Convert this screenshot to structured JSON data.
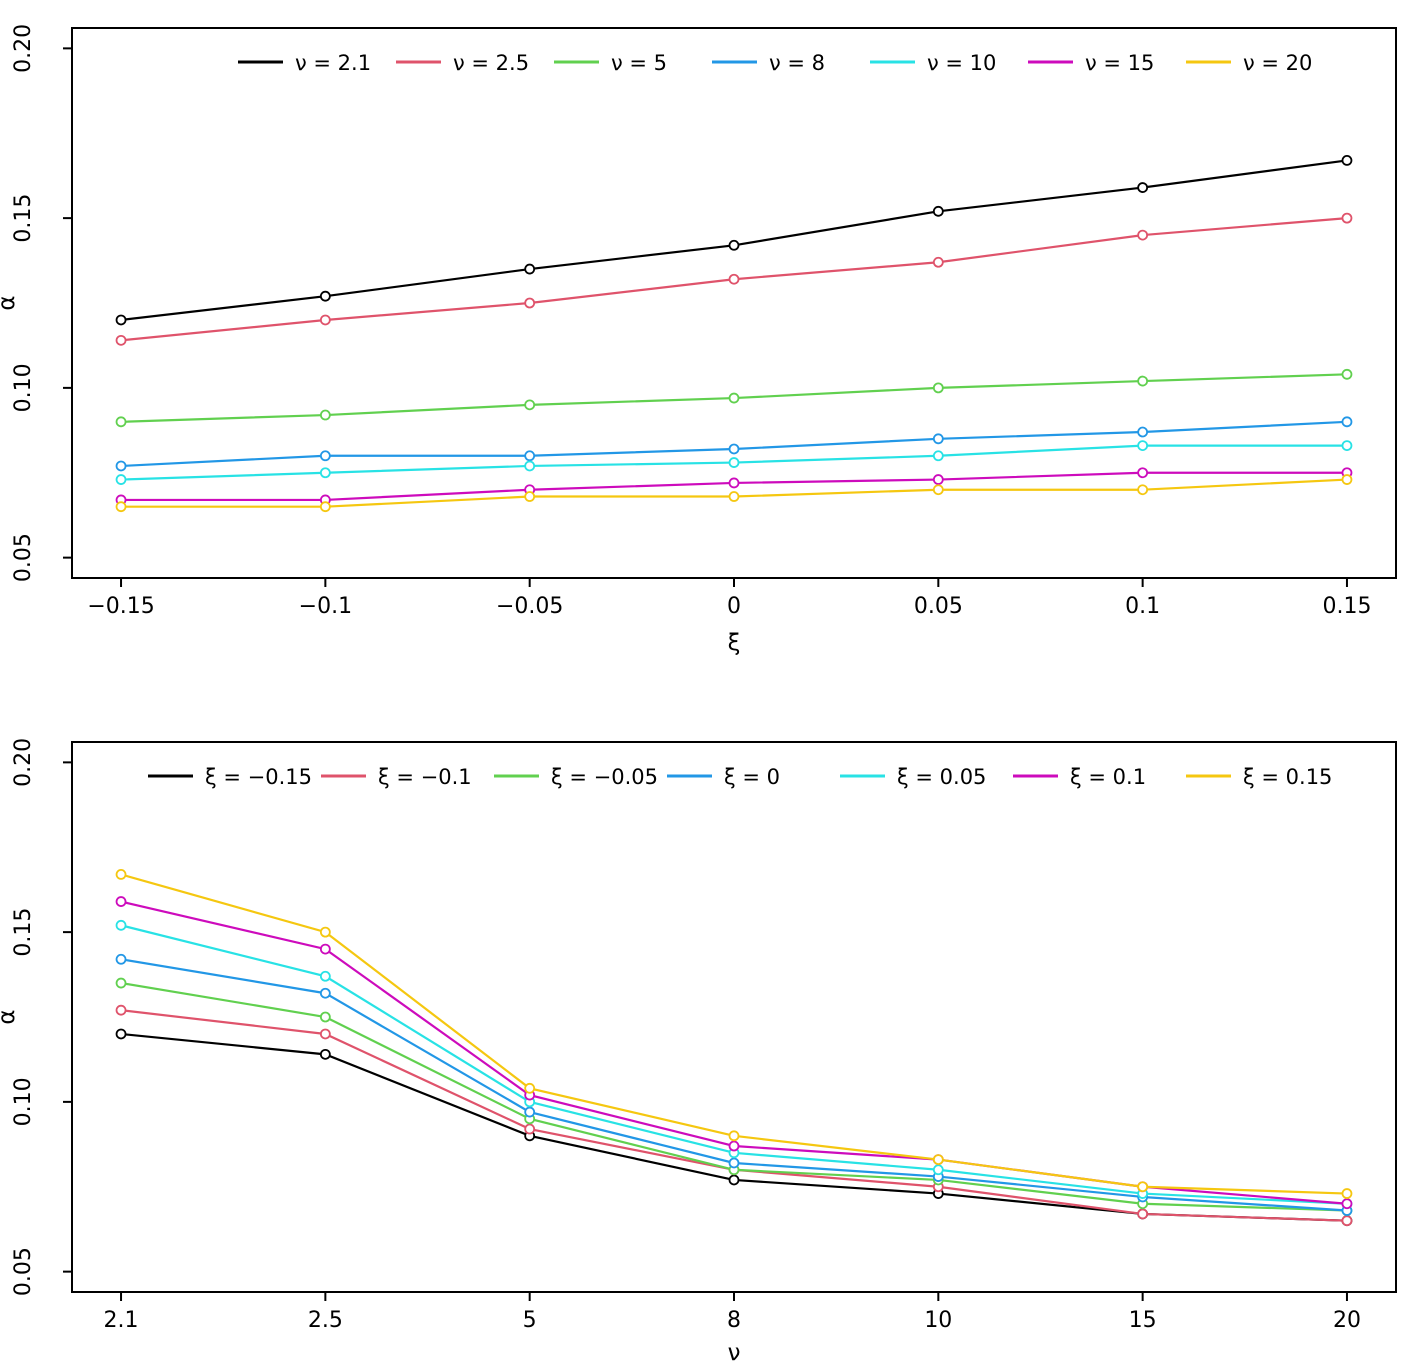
{
  "figure": {
    "background": "#ffffff",
    "palette": [
      "#000000",
      "#DF536B",
      "#61D04F",
      "#2297E6",
      "#28E2E5",
      "#CD0BBC",
      "#F5C710"
    ]
  },
  "chart_data": [
    {
      "type": "line",
      "title": "",
      "xlabel": "ξ",
      "ylabel": "α",
      "x": [
        -0.15,
        -0.1,
        -0.05,
        0,
        0.05,
        0.1,
        0.15
      ],
      "x_tick_labels": [
        "−0.15",
        "−0.1",
        "−0.05",
        "0",
        "0.05",
        "0.1",
        "0.15"
      ],
      "y_ticks": [
        0.05,
        0.1,
        0.15,
        0.2
      ],
      "y_tick_labels": [
        "0.05",
        "0.10",
        "0.15",
        "0.20"
      ],
      "ylim": [
        0.044,
        0.206
      ],
      "grid": false,
      "legend_position": "top-horizontal",
      "marker": "open-circle",
      "series": [
        {
          "name": "ν = 2.1",
          "color": "#000000",
          "values": [
            0.12,
            0.127,
            0.135,
            0.142,
            0.152,
            0.159,
            0.167
          ]
        },
        {
          "name": "ν = 2.5",
          "color": "#DF536B",
          "values": [
            0.114,
            0.12,
            0.125,
            0.132,
            0.137,
            0.145,
            0.15
          ]
        },
        {
          "name": "ν = 5",
          "color": "#61D04F",
          "values": [
            0.09,
            0.092,
            0.095,
            0.097,
            0.1,
            0.102,
            0.104
          ]
        },
        {
          "name": "ν = 8",
          "color": "#2297E6",
          "values": [
            0.077,
            0.08,
            0.08,
            0.082,
            0.085,
            0.087,
            0.09
          ]
        },
        {
          "name": "ν = 10",
          "color": "#28E2E5",
          "values": [
            0.073,
            0.075,
            0.077,
            0.078,
            0.08,
            0.083,
            0.083
          ]
        },
        {
          "name": "ν = 15",
          "color": "#CD0BBC",
          "values": [
            0.067,
            0.067,
            0.07,
            0.072,
            0.073,
            0.075,
            0.075
          ]
        },
        {
          "name": "ν = 20",
          "color": "#F5C710",
          "values": [
            0.065,
            0.065,
            0.068,
            0.068,
            0.07,
            0.07,
            0.073
          ]
        }
      ]
    },
    {
      "type": "line",
      "title": "",
      "xlabel": "ν",
      "ylabel": "α",
      "categories": [
        "2.1",
        "2.5",
        "5",
        "8",
        "10",
        "15",
        "20"
      ],
      "y_ticks": [
        0.05,
        0.1,
        0.15,
        0.2
      ],
      "y_tick_labels": [
        "0.05",
        "0.10",
        "0.15",
        "0.20"
      ],
      "ylim": [
        0.044,
        0.206
      ],
      "grid": false,
      "legend_position": "top-horizontal",
      "marker": "open-circle",
      "series": [
        {
          "name": "ξ = −0.15",
          "color": "#000000",
          "values": [
            0.12,
            0.114,
            0.09,
            0.077,
            0.073,
            0.067,
            0.065
          ]
        },
        {
          "name": "ξ = −0.1",
          "color": "#DF536B",
          "values": [
            0.127,
            0.12,
            0.092,
            0.08,
            0.075,
            0.067,
            0.065
          ]
        },
        {
          "name": "ξ = −0.05",
          "color": "#61D04F",
          "values": [
            0.135,
            0.125,
            0.095,
            0.08,
            0.077,
            0.07,
            0.068
          ]
        },
        {
          "name": "ξ = 0",
          "color": "#2297E6",
          "values": [
            0.142,
            0.132,
            0.097,
            0.082,
            0.078,
            0.072,
            0.068
          ]
        },
        {
          "name": "ξ = 0.05",
          "color": "#28E2E5",
          "values": [
            0.152,
            0.137,
            0.1,
            0.085,
            0.08,
            0.073,
            0.07
          ]
        },
        {
          "name": "ξ = 0.1",
          "color": "#CD0BBC",
          "values": [
            0.159,
            0.145,
            0.102,
            0.087,
            0.083,
            0.075,
            0.07
          ]
        },
        {
          "name": "ξ = 0.15",
          "color": "#F5C710",
          "values": [
            0.167,
            0.15,
            0.104,
            0.09,
            0.083,
            0.075,
            0.073
          ]
        }
      ]
    }
  ]
}
